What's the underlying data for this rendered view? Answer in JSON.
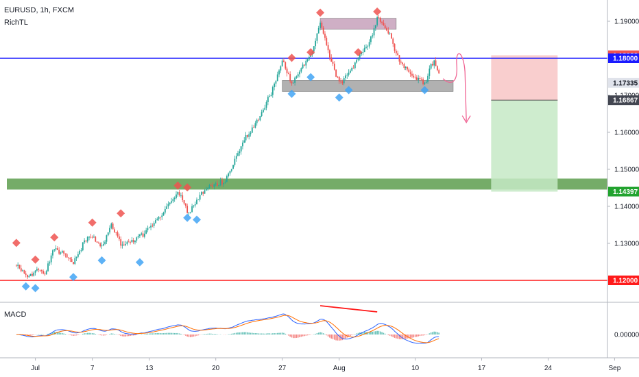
{
  "header": {
    "symbol": "EURUSD, 1h, FXCM",
    "indicator": "RichTL"
  },
  "colors": {
    "up": "#26a69a",
    "down": "#ef5350",
    "blue_line": "#1a1aff",
    "red_line": "#ff1a1a",
    "supply_zone": "#c39bb7",
    "demand_zone": "#9e9e9e",
    "support_zone": "#5d9e4d",
    "stop_zone": "#f8c6c6",
    "target_zone": "#c6e9c6",
    "macd_line": "#2962ff",
    "signal_line": "#ff6d00",
    "pivot_high": "#ef5350",
    "pivot_low": "#42a5f5",
    "arrow": "#f06292"
  },
  "chart_data": {
    "type": "candlestick",
    "symbol": "EURUSD",
    "timeframe": "1h",
    "x_ticks": [
      "Jul",
      "7",
      "13",
      "20",
      "27",
      "Aug",
      "10",
      "17",
      "24",
      "Sep"
    ],
    "y_ticks": [
      "1.19000",
      "1.18000",
      "1.17000",
      "1.16000",
      "1.15000",
      "1.14000",
      "1.13000",
      "1.12000"
    ],
    "ylim": [
      1.1115,
      1.1965
    ],
    "price_path": [
      {
        "x": "Jun 29",
        "y": 1.124
      },
      {
        "x": "Jun 30",
        "y": 1.1205
      },
      {
        "x": "Jul 1",
        "y": 1.123
      },
      {
        "x": "Jul 2",
        "y": 1.1218
      },
      {
        "x": "Jul 3",
        "y": 1.129
      },
      {
        "x": "Jul 5",
        "y": 1.1245
      },
      {
        "x": "Jul 6",
        "y": 1.13
      },
      {
        "x": "Jul 7",
        "y": 1.132
      },
      {
        "x": "Jul 8",
        "y": 1.129
      },
      {
        "x": "Jul 9",
        "y": 1.135
      },
      {
        "x": "Jul 10",
        "y": 1.129
      },
      {
        "x": "Jul 12",
        "y": 1.132
      },
      {
        "x": "Jul 13",
        "y": 1.134
      },
      {
        "x": "Jul 15",
        "y": 1.14
      },
      {
        "x": "Jul 16",
        "y": 1.1445
      },
      {
        "x": "Jul 17",
        "y": 1.1385
      },
      {
        "x": "Jul 18",
        "y": 1.142
      },
      {
        "x": "Jul 19",
        "y": 1.145
      },
      {
        "x": "Jul 21",
        "y": 1.147
      },
      {
        "x": "Jul 22",
        "y": 1.153
      },
      {
        "x": "Jul 23",
        "y": 1.158
      },
      {
        "x": "Jul 24",
        "y": 1.162
      },
      {
        "x": "Jul 26",
        "y": 1.172
      },
      {
        "x": "Jul 27",
        "y": 1.179
      },
      {
        "x": "Jul 28",
        "y": 1.173
      },
      {
        "x": "Jul 29",
        "y": 1.178
      },
      {
        "x": "Jul 30",
        "y": 1.181
      },
      {
        "x": "Jul 31",
        "y": 1.19
      },
      {
        "x": "Aug 1",
        "y": 1.179
      },
      {
        "x": "Aug 2",
        "y": 1.173
      },
      {
        "x": "Aug 3",
        "y": 1.176
      },
      {
        "x": "Aug 4",
        "y": 1.1805
      },
      {
        "x": "Aug 5",
        "y": 1.183
      },
      {
        "x": "Aug 6",
        "y": 1.191
      },
      {
        "x": "Aug 7",
        "y": 1.188
      },
      {
        "x": "Aug 8",
        "y": 1.181
      },
      {
        "x": "Aug 9",
        "y": 1.177
      },
      {
        "x": "Aug 10",
        "y": 1.1745
      },
      {
        "x": "Aug 11",
        "y": 1.1735
      },
      {
        "x": "Aug 12",
        "y": 1.18
      },
      {
        "x": "Aug 12 12:00",
        "y": 1.1755
      }
    ],
    "horizontal_lines": [
      {
        "price": 1.18,
        "label": "1.18000",
        "color": "#1a1aff"
      },
      {
        "price": 1.12,
        "label": "1.12000",
        "color": "#ff1a1a"
      }
    ],
    "zones": [
      {
        "from": "Jul 31",
        "to": "Aug 8",
        "y_low": 1.1895,
        "y_high": 1.1908,
        "color": "#c39bb7",
        "role": "resistance"
      },
      {
        "from": "Jul 27",
        "to": "Aug 14",
        "y_low": 1.1725,
        "y_high": 1.174,
        "color": "#9e9e9e",
        "role": "neckline"
      },
      {
        "from": "Jun 28",
        "to": "Aug 31",
        "y_low": 1.1448,
        "y_high": 1.1475,
        "color": "#5d9e4d",
        "role": "support"
      }
    ],
    "position": {
      "side": "short",
      "from": "Aug 18",
      "to": "Aug 25",
      "stop": 1.18082,
      "entry": 1.16867,
      "target": 1.14397
    },
    "price_badges": [
      {
        "label": "1.18082",
        "price": 1.18082,
        "bg": "#ef5350",
        "fg": "#ffffff"
      },
      {
        "label": "1.18000",
        "price": 1.18,
        "bg": "#1a1aff",
        "fg": "#ffffff"
      },
      {
        "label": "1.17335",
        "price": 1.17335,
        "bg": "#e0e3eb",
        "fg": "#131722"
      },
      {
        "label": "1.16867",
        "price": 1.16867,
        "bg": "#434651",
        "fg": "#ffffff"
      },
      {
        "label": "1.14397",
        "price": 1.14397,
        "bg": "#22a32f",
        "fg": "#ffffff"
      },
      {
        "label": "1.12000",
        "price": 1.12,
        "bg": "#ff1a1a",
        "fg": "#ffffff"
      }
    ],
    "pivot_highs": [
      {
        "x": "Jun 29",
        "y": 1.129
      },
      {
        "x": "Jul 1",
        "y": 1.1245
      },
      {
        "x": "Jul 3",
        "y": 1.1305
      },
      {
        "x": "Jul 7",
        "y": 1.1345
      },
      {
        "x": "Jul 10",
        "y": 1.137
      },
      {
        "x": "Jul 16",
        "y": 1.1445
      },
      {
        "x": "Jul 17",
        "y": 1.144
      },
      {
        "x": "Jul 28",
        "y": 1.179
      },
      {
        "x": "Jul 30",
        "y": 1.1805
      },
      {
        "x": "Jul 31",
        "y": 1.1912
      },
      {
        "x": "Aug 4",
        "y": 1.1805
      },
      {
        "x": "Aug 6",
        "y": 1.1915
      }
    ],
    "pivot_lows": [
      {
        "x": "Jun 30",
        "y": 1.1195
      },
      {
        "x": "Jul 1",
        "y": 1.119
      },
      {
        "x": "Jul 5",
        "y": 1.122
      },
      {
        "x": "Jul 8",
        "y": 1.1265
      },
      {
        "x": "Jul 12",
        "y": 1.126
      },
      {
        "x": "Jul 17",
        "y": 1.138
      },
      {
        "x": "Jul 18",
        "y": 1.1375
      },
      {
        "x": "Jul 28",
        "y": 1.1715
      },
      {
        "x": "Jul 30",
        "y": 1.176
      },
      {
        "x": "Aug 2",
        "y": 1.1705
      },
      {
        "x": "Aug 3",
        "y": 1.1725
      },
      {
        "x": "Aug 11",
        "y": 1.1725
      }
    ],
    "macd": {
      "label": "MACD",
      "y_ticks": [
        "0.00000"
      ],
      "divergence_line": {
        "from": "Jul 31",
        "to": "Aug 6"
      }
    }
  }
}
